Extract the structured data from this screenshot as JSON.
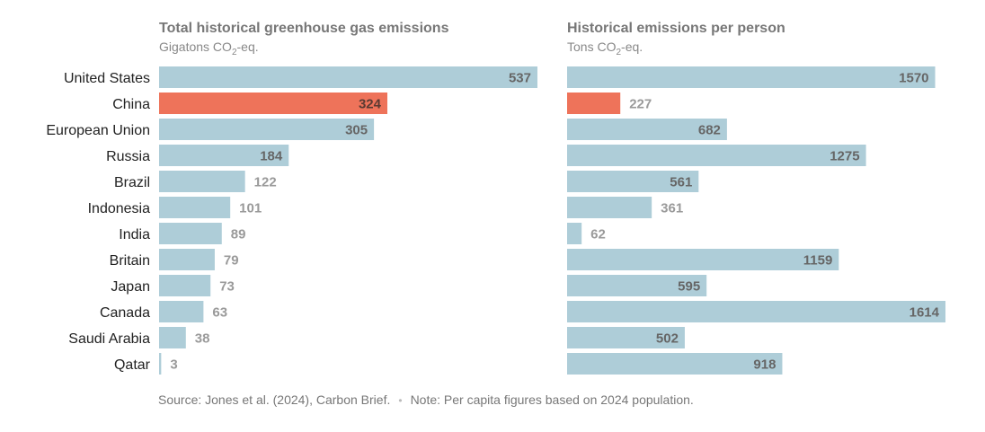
{
  "chart_data": {
    "type": "bar",
    "orientation": "horizontal",
    "categories": [
      "United States",
      "China",
      "European Union",
      "Russia",
      "Brazil",
      "Indonesia",
      "India",
      "Britain",
      "Japan",
      "Canada",
      "Saudi Arabia",
      "Qatar"
    ],
    "highlight_category": "China",
    "colors": {
      "bar": "#aecdd8",
      "highlight": "#ee735a",
      "title": "#777777",
      "label": "#222222"
    },
    "panels": [
      {
        "title": "Total historical greenhouse gas emissions",
        "subtitle_prefix": "Gigatons CO",
        "subtitle_sub": "2",
        "subtitle_suffix": "-eq.",
        "values": [
          537,
          324,
          305,
          184,
          122,
          101,
          89,
          79,
          73,
          63,
          38,
          3
        ],
        "xlim": [
          0,
          537
        ]
      },
      {
        "title": "Historical emissions per person",
        "subtitle_prefix": "Tons CO",
        "subtitle_sub": "2",
        "subtitle_suffix": "-eq.",
        "values": [
          1570,
          227,
          682,
          1275,
          561,
          361,
          62,
          1159,
          595,
          1614,
          502,
          918
        ],
        "xlim": [
          0,
          1614
        ]
      }
    ]
  },
  "footer": {
    "source": "Source: Jones et al. (2024), Carbon Brief.",
    "separator": "•",
    "note": "Note: Per capita figures based on 2024 population."
  }
}
